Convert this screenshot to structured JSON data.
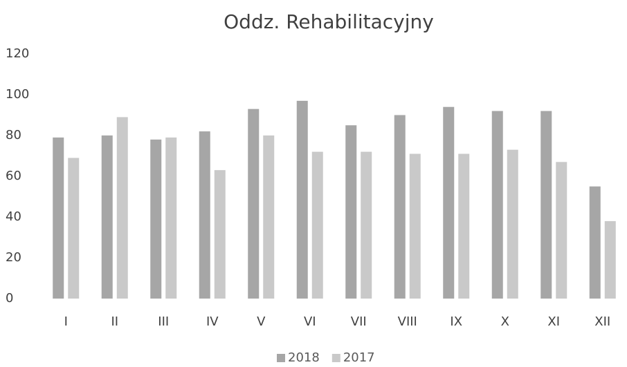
{
  "chart_data": {
    "type": "bar",
    "title": "Oddz. Rehabilitacyjny",
    "categories": [
      "I",
      "II",
      "III",
      "IV",
      "V",
      "VI",
      "VII",
      "VIII",
      "IX",
      "X",
      "XI",
      "XII"
    ],
    "series": [
      {
        "name": "2018",
        "color": "#a6a6a6",
        "values": [
          79,
          80,
          78,
          82,
          93,
          97,
          85,
          90,
          94,
          92,
          92,
          55
        ]
      },
      {
        "name": "2017",
        "color": "#c9c9c9",
        "values": [
          69,
          89,
          79,
          63,
          80,
          72,
          72,
          71,
          71,
          73,
          67,
          38
        ]
      }
    ],
    "ylim": [
      0,
      120
    ],
    "yticks": [
      0,
      20,
      40,
      60,
      80,
      100,
      120
    ],
    "grid": false,
    "legend": "bottom"
  }
}
